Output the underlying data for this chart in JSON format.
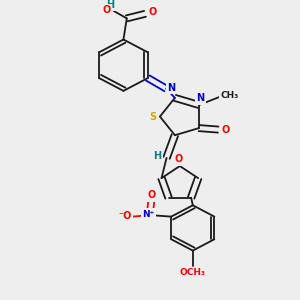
{
  "bg_color": "#eeeeee",
  "colors": {
    "C": "#1a1a1a",
    "O": "#ff0000",
    "N": "#0000cd",
    "S": "#ccaa00",
    "H": "#008080"
  },
  "layout": {
    "figsize": [
      3.0,
      3.0
    ],
    "dpi": 100,
    "xlim": [
      0.05,
      0.95
    ],
    "ylim": [
      0.02,
      0.98
    ]
  }
}
